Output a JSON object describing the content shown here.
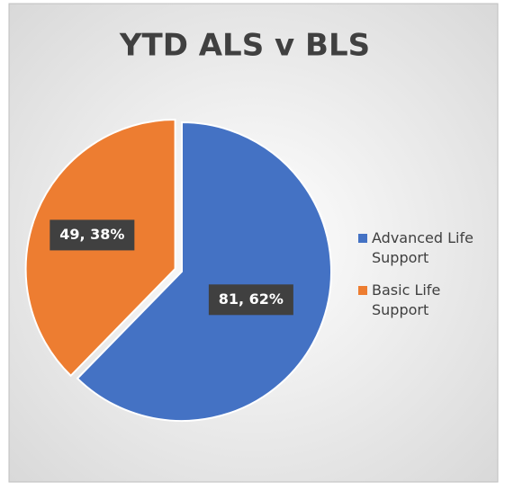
{
  "chart_data": {
    "type": "pie",
    "title": "YTD ALS v BLS",
    "categories": [
      "Advanced Life Support",
      "Basic Life Support"
    ],
    "values": [
      81,
      49
    ],
    "value_labels": [
      "81, 62%",
      "49, 38%"
    ],
    "colors": [
      "#4472c4",
      "#ed7d31"
    ],
    "legend": "right"
  }
}
